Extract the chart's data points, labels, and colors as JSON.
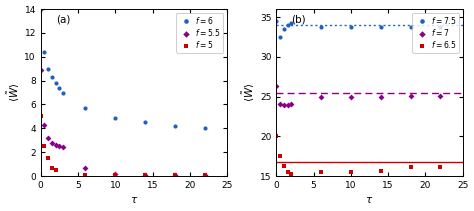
{
  "panel_a": {
    "series": [
      {
        "label": "$f=6$",
        "color": "#2060c0",
        "marker": "o",
        "x": [
          0,
          0.5,
          1,
          1.5,
          2,
          2.5,
          3,
          6,
          10,
          14,
          18,
          22
        ],
        "y": [
          14,
          10.4,
          9.0,
          8.3,
          7.8,
          7.4,
          7.0,
          5.7,
          4.9,
          4.5,
          4.2,
          4.05
        ]
      },
      {
        "label": "$f=5.5$",
        "color": "#8B008B",
        "marker": "D",
        "x": [
          0,
          0.5,
          1,
          1.5,
          2,
          2.5,
          3,
          6,
          10,
          14,
          18,
          22
        ],
        "y": [
          8.9,
          4.3,
          3.2,
          2.8,
          2.6,
          2.5,
          2.4,
          0.7,
          0.15,
          0.1,
          0.05,
          0.05
        ]
      },
      {
        "label": "$f=5$",
        "color": "#cc0000",
        "marker": "s",
        "x": [
          0,
          0.5,
          1,
          1.5,
          2,
          6,
          10,
          14,
          18,
          22
        ],
        "y": [
          5.0,
          2.5,
          1.5,
          0.7,
          0.5,
          0.05,
          0.05,
          0.05,
          0.05,
          0.05
        ]
      }
    ],
    "xlabel": "$\\tau$",
    "xlim": [
      0,
      25
    ],
    "ylim": [
      0,
      14
    ],
    "yticks": [
      0,
      2,
      4,
      6,
      8,
      10,
      12,
      14
    ],
    "xticks": [
      0,
      5,
      10,
      15,
      20,
      25
    ],
    "label": "(a)"
  },
  "panel_b": {
    "series": [
      {
        "label": "$f=7.5$",
        "color": "#2060c0",
        "marker": "o",
        "x": [
          0,
          0.5,
          1,
          1.5,
          2,
          6,
          10,
          14,
          18,
          22
        ],
        "y": [
          34.5,
          32.5,
          33.5,
          34.0,
          34.2,
          33.8,
          33.7,
          33.8,
          33.7,
          33.8
        ],
        "hline": 34.0,
        "hline_style": "dotted"
      },
      {
        "label": "$f=7$",
        "color": "#8B008B",
        "marker": "D",
        "x": [
          0,
          0.5,
          1,
          1.5,
          2,
          6,
          10,
          14,
          18,
          22
        ],
        "y": [
          26.3,
          24.0,
          23.9,
          23.9,
          24.0,
          24.9,
          25.0,
          25.0,
          25.1,
          25.1
        ],
        "hline": 25.5,
        "hline_style": "dashed"
      },
      {
        "label": "$f=6.5$",
        "color": "#cc0000",
        "marker": "s",
        "x": [
          0,
          0.5,
          1,
          1.5,
          2,
          6,
          10,
          14,
          18,
          22
        ],
        "y": [
          20.0,
          17.5,
          16.3,
          15.5,
          15.3,
          15.5,
          15.5,
          15.6,
          16.1,
          16.1
        ],
        "hline": 16.8,
        "hline_style": "solid"
      }
    ],
    "xlabel": "$\\tau$",
    "xlim": [
      0,
      25
    ],
    "ylim": [
      15,
      36
    ],
    "yticks": [
      15,
      20,
      25,
      30,
      35
    ],
    "xticks": [
      0,
      5,
      10,
      15,
      20,
      25
    ],
    "label": "(b)"
  },
  "background_color": "#ffffff",
  "marker_size": 3.0,
  "font_size": 7.5
}
